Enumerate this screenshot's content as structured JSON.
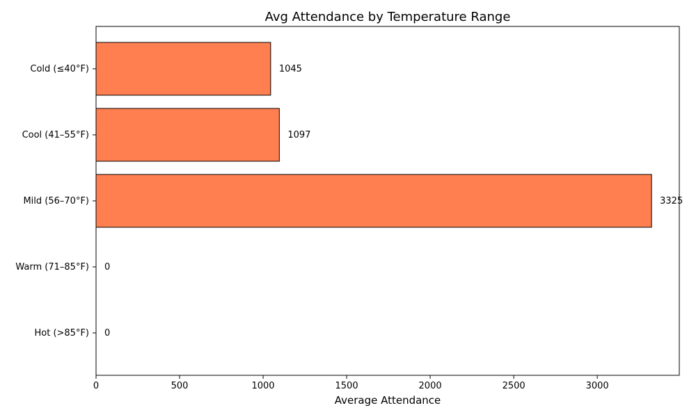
{
  "chart_data": {
    "type": "bar",
    "orientation": "horizontal",
    "title": "Avg Attendance by Temperature Range",
    "xlabel": "Average Attendance",
    "ylabel": "",
    "categories": [
      "Cold (≤40°F)",
      "Cool (41–55°F)",
      "Mild (56–70°F)",
      "Warm (71–85°F)",
      "Hot (>85°F)"
    ],
    "values": [
      1045,
      1097,
      3325,
      0,
      0
    ],
    "data_labels": [
      "1045",
      "1097",
      "3325",
      "0",
      "0"
    ],
    "x_ticks": [
      0,
      500,
      1000,
      1500,
      2000,
      2500,
      3000
    ],
    "x_tick_labels": [
      "0",
      "500",
      "1000",
      "1500",
      "2000",
      "2500",
      "3000"
    ],
    "xlim": [
      0,
      3491
    ],
    "grid": false,
    "legend": "none",
    "bar_color": "#ff7f50",
    "bar_edge_color": "#000000"
  }
}
